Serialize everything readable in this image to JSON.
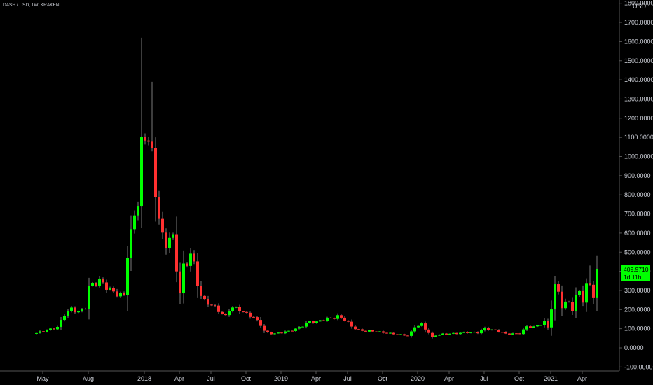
{
  "header": {
    "title": "DASH / USD, 1W, KRAKEN",
    "currency": "USD"
  },
  "price_tag": {
    "value": "409.9710",
    "countdown": "1d 11h",
    "color": "#00ff00"
  },
  "colors": {
    "background": "#000000",
    "up": "#00ff00",
    "down": "#ff3030",
    "wick": "#7a7a7a",
    "axis_text": "#d1d4dc",
    "axis_line": "#555555"
  },
  "chart_data": {
    "type": "candlestick",
    "title": "DASH / USD, 1W, KRAKEN",
    "xlabel": "",
    "ylabel": "",
    "ylim": [
      -100,
      1800
    ],
    "grid": false,
    "y_ticks": [
      "-100.0000",
      "0.0000",
      "100.0000",
      "200.0000",
      "300.0000",
      "400.0000",
      "500.0000",
      "600.0000",
      "700.0000",
      "800.0000",
      "900.0000",
      "1000.0000",
      "1100.0000",
      "1200.0000",
      "1300.0000",
      "1400.0000",
      "1500.0000",
      "1600.0000",
      "1700.0000",
      "1800.0000"
    ],
    "x_ticks": [
      "May",
      "Aug",
      "2018",
      "Apr",
      "Jul",
      "Oct",
      "2019",
      "Apr",
      "Jul",
      "Oct",
      "2020",
      "Apr",
      "Jul",
      "Oct",
      "2021",
      "Apr"
    ],
    "x_tick_week": [
      0,
      13,
      29,
      39,
      48,
      58,
      68,
      78,
      87,
      97,
      107,
      116,
      126,
      136,
      145,
      154
    ],
    "last_price": 409.971,
    "weeks_total": 161,
    "anchors": [
      [
        0,
        75
      ],
      [
        4,
        100
      ],
      [
        6,
        110
      ],
      [
        8,
        170
      ],
      [
        10,
        200
      ],
      [
        12,
        190
      ],
      [
        14,
        220
      ],
      [
        15,
        320
      ],
      [
        18,
        340
      ],
      [
        21,
        310
      ],
      [
        24,
        280
      ],
      [
        25,
        270
      ],
      [
        26,
        480
      ],
      [
        28,
        680
      ],
      [
        29,
        780
      ],
      [
        30,
        1080
      ],
      [
        31,
        1120
      ],
      [
        32,
        1150
      ],
      [
        33,
        1000
      ],
      [
        34,
        780
      ],
      [
        35,
        680
      ],
      [
        36,
        560
      ],
      [
        37,
        520
      ],
      [
        38,
        600
      ],
      [
        39,
        580
      ],
      [
        40,
        420
      ],
      [
        41,
        300
      ],
      [
        42,
        420
      ],
      [
        43,
        430
      ],
      [
        44,
        490
      ],
      [
        45,
        420
      ],
      [
        46,
        330
      ],
      [
        47,
        280
      ],
      [
        48,
        250
      ],
      [
        50,
        230
      ],
      [
        52,
        190
      ],
      [
        54,
        160
      ],
      [
        55,
        200
      ],
      [
        56,
        215
      ],
      [
        58,
        205
      ],
      [
        60,
        175
      ],
      [
        62,
        155
      ],
      [
        64,
        120
      ],
      [
        65,
        90
      ],
      [
        66,
        80
      ],
      [
        68,
        75
      ],
      [
        70,
        78
      ],
      [
        72,
        85
      ],
      [
        74,
        100
      ],
      [
        76,
        120
      ],
      [
        78,
        135
      ],
      [
        80,
        130
      ],
      [
        82,
        150
      ],
      [
        84,
        160
      ],
      [
        86,
        165
      ],
      [
        88,
        145
      ],
      [
        90,
        110
      ],
      [
        92,
        95
      ],
      [
        94,
        90
      ],
      [
        96,
        85
      ],
      [
        98,
        80
      ],
      [
        100,
        78
      ],
      [
        102,
        75
      ],
      [
        104,
        68
      ],
      [
        106,
        62
      ],
      [
        107,
        80
      ],
      [
        108,
        110
      ],
      [
        110,
        125
      ],
      [
        112,
        80
      ],
      [
        113,
        55
      ],
      [
        114,
        65
      ],
      [
        116,
        70
      ],
      [
        118,
        75
      ],
      [
        120,
        78
      ],
      [
        122,
        80
      ],
      [
        124,
        78
      ],
      [
        126,
        80
      ],
      [
        128,
        105
      ],
      [
        130,
        95
      ],
      [
        132,
        85
      ],
      [
        134,
        72
      ],
      [
        136,
        75
      ],
      [
        138,
        78
      ],
      [
        140,
        110
      ],
      [
        142,
        105
      ],
      [
        144,
        125
      ],
      [
        145,
        140
      ],
      [
        146,
        110
      ],
      [
        148,
        320
      ],
      [
        149,
        290
      ],
      [
        150,
        210
      ],
      [
        152,
        240
      ],
      [
        153,
        200
      ],
      [
        154,
        270
      ],
      [
        155,
        310
      ],
      [
        156,
        250
      ],
      [
        157,
        320
      ],
      [
        158,
        330
      ],
      [
        159,
        260
      ],
      [
        160,
        410
      ]
    ],
    "spikes": [
      [
        30,
        1620
      ],
      [
        33,
        1390
      ],
      [
        34,
        1100
      ],
      [
        44,
        520
      ],
      [
        149,
        350
      ],
      [
        158,
        430
      ],
      [
        160,
        480
      ]
    ]
  }
}
